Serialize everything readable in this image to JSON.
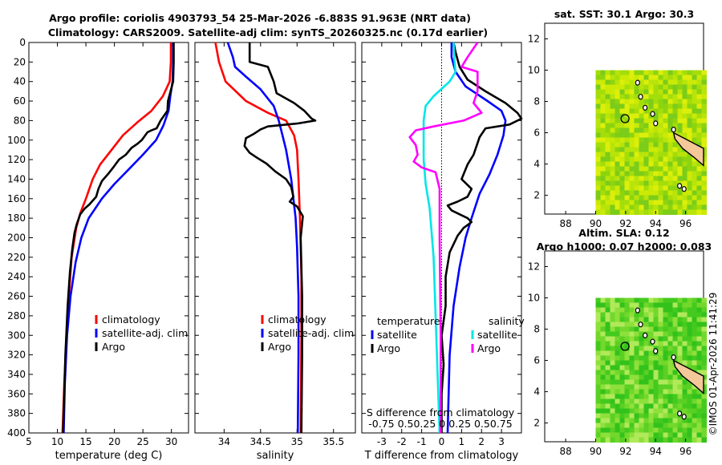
{
  "title_line1": "Argo profile: coriolis 4903793_54 25-Mar-2026 -6.883S 91.963E (NRT data)",
  "title_line2": "Climatology: CARS2009. Satellite-adj clim: synTS_20260325.nc (0.17d earlier)",
  "watermark": "©IMOS 01-Apr-2026 11:41:29",
  "chart_data": [
    {
      "type": "line",
      "id": "temp",
      "xlabel": "temperature (deg C)",
      "ylabel": "",
      "xlim": [
        5,
        33
      ],
      "ylim": [
        0,
        400
      ],
      "y_inverted": true,
      "xticks": [
        5,
        10,
        15,
        20,
        25,
        30
      ],
      "yticks": [
        0,
        20,
        40,
        60,
        80,
        100,
        120,
        140,
        160,
        180,
        200,
        220,
        240,
        260,
        280,
        300,
        320,
        340,
        360,
        380,
        400
      ],
      "legend": [
        "climatology",
        "satellite-adj. clim",
        "Argo"
      ],
      "series": [
        {
          "name": "climatology",
          "color": "#ff0000",
          "points": [
            [
              29.9,
              0
            ],
            [
              29.9,
              20
            ],
            [
              29.7,
              40
            ],
            [
              28.5,
              55
            ],
            [
              26.5,
              70
            ],
            [
              24.0,
              82
            ],
            [
              21.5,
              95
            ],
            [
              19.5,
              110
            ],
            [
              17.5,
              125
            ],
            [
              16.2,
              140
            ],
            [
              15.0,
              160
            ],
            [
              14.0,
              175
            ],
            [
              13.3,
              190
            ],
            [
              12.5,
              220
            ],
            [
              12.0,
              260
            ],
            [
              11.6,
              300
            ],
            [
              11.2,
              350
            ],
            [
              10.9,
              400
            ]
          ]
        },
        {
          "name": "satellite-adj. clim",
          "color": "#0000ff",
          "points": [
            [
              30.3,
              0
            ],
            [
              30.3,
              20
            ],
            [
              30.2,
              40
            ],
            [
              29.8,
              55
            ],
            [
              29.5,
              70
            ],
            [
              28.6,
              85
            ],
            [
              27.3,
              100
            ],
            [
              25.0,
              115
            ],
            [
              22.5,
              130
            ],
            [
              20.0,
              145
            ],
            [
              17.8,
              160
            ],
            [
              15.5,
              180
            ],
            [
              14.2,
              200
            ],
            [
              13.2,
              225
            ],
            [
              12.3,
              260
            ],
            [
              11.7,
              300
            ],
            [
              11.3,
              350
            ],
            [
              11.1,
              400
            ]
          ]
        },
        {
          "name": "Argo",
          "color": "#000000",
          "points": [
            [
              30.4,
              0
            ],
            [
              30.4,
              20
            ],
            [
              30.3,
              40
            ],
            [
              29.4,
              60
            ],
            [
              29.3,
              70
            ],
            [
              28.1,
              80
            ],
            [
              27.4,
              88
            ],
            [
              26.5,
              90
            ],
            [
              25.8,
              92
            ],
            [
              24.8,
              100
            ],
            [
              24.0,
              104
            ],
            [
              23.0,
              108
            ],
            [
              22.0,
              115
            ],
            [
              20.8,
              120
            ],
            [
              19.8,
              128
            ],
            [
              19.0,
              134
            ],
            [
              17.8,
              142
            ],
            [
              17.2,
              150
            ],
            [
              16.8,
              158
            ],
            [
              16.2,
              162
            ],
            [
              15.6,
              166
            ],
            [
              14.8,
              170
            ],
            [
              14.0,
              176
            ],
            [
              13.4,
              186
            ],
            [
              13.0,
              195
            ],
            [
              12.6,
              212
            ],
            [
              12.2,
              235
            ],
            [
              11.8,
              270
            ],
            [
              11.4,
              320
            ],
            [
              11.2,
              360
            ],
            [
              11.0,
              400
            ]
          ]
        }
      ]
    },
    {
      "type": "line",
      "id": "sal",
      "xlabel": "salinity",
      "xlim": [
        33.6,
        35.8
      ],
      "ylim": [
        0,
        400
      ],
      "y_inverted": true,
      "xticks": [
        34,
        34.5,
        35,
        35.5
      ],
      "legend": [
        "climatology",
        "satellite-adj. clim",
        "Argo"
      ],
      "series": [
        {
          "name": "climatology",
          "color": "#ff0000",
          "points": [
            [
              33.88,
              0
            ],
            [
              33.93,
              20
            ],
            [
              34.02,
              40
            ],
            [
              34.3,
              60
            ],
            [
              34.6,
              72
            ],
            [
              34.85,
              80
            ],
            [
              34.96,
              95
            ],
            [
              35.0,
              110
            ],
            [
              35.02,
              140
            ],
            [
              35.04,
              180
            ],
            [
              35.06,
              240
            ],
            [
              35.06,
              300
            ],
            [
              35.05,
              400
            ]
          ]
        },
        {
          "name": "satellite-adj. clim",
          "color": "#0000ff",
          "points": [
            [
              34.05,
              0
            ],
            [
              34.12,
              15
            ],
            [
              34.15,
              25
            ],
            [
              34.3,
              35
            ],
            [
              34.5,
              48
            ],
            [
              34.68,
              65
            ],
            [
              34.75,
              80
            ],
            [
              34.8,
              95
            ],
            [
              34.85,
              110
            ],
            [
              34.92,
              140
            ],
            [
              34.98,
              180
            ],
            [
              35.0,
              210
            ],
            [
              35.02,
              260
            ],
            [
              35.02,
              320
            ],
            [
              35.01,
              400
            ]
          ]
        },
        {
          "name": "Argo",
          "color": "#000000",
          "points": [
            [
              34.35,
              0
            ],
            [
              34.35,
              10
            ],
            [
              34.35,
              20
            ],
            [
              34.6,
              25
            ],
            [
              34.68,
              40
            ],
            [
              34.72,
              52
            ],
            [
              34.96,
              62
            ],
            [
              35.1,
              70
            ],
            [
              35.2,
              78
            ],
            [
              35.25,
              80
            ],
            [
              35.0,
              83
            ],
            [
              34.6,
              86
            ],
            [
              34.5,
              89
            ],
            [
              34.4,
              94
            ],
            [
              34.3,
              98
            ],
            [
              34.28,
              106
            ],
            [
              34.35,
              113
            ],
            [
              34.45,
              118
            ],
            [
              34.58,
              124
            ],
            [
              34.7,
              132
            ],
            [
              34.85,
              140
            ],
            [
              34.92,
              148
            ],
            [
              34.95,
              158
            ],
            [
              34.9,
              163
            ],
            [
              35.0,
              168
            ],
            [
              35.08,
              178
            ],
            [
              35.05,
              200
            ],
            [
              35.07,
              260
            ],
            [
              35.07,
              320
            ],
            [
              35.06,
              400
            ]
          ]
        }
      ]
    },
    {
      "type": "line",
      "id": "diff",
      "xlabel": "T difference from climatology",
      "top_label": "S difference from climatology",
      "top_ticks": "-0.75 0.50.25  0  0.25 0.50.75",
      "xlim": [
        -4,
        4
      ],
      "ylim": [
        0,
        400
      ],
      "y_inverted": true,
      "xticks": [
        -3,
        -2,
        -1,
        0,
        1,
        2,
        3
      ],
      "legend_left_title": "temperature",
      "legend_right_title": "salinity",
      "legend_left": [
        "satellite",
        "Argo"
      ],
      "legend_right": [
        "satellite",
        "Argo"
      ],
      "series": [
        {
          "name": "temperature satellite",
          "color": "#0000ff",
          "points": [
            [
              0.5,
              0
            ],
            [
              0.5,
              15
            ],
            [
              0.7,
              30
            ],
            [
              1.2,
              45
            ],
            [
              2.3,
              60
            ],
            [
              3.0,
              70
            ],
            [
              3.2,
              80
            ],
            [
              3.1,
              95
            ],
            [
              2.8,
              115
            ],
            [
              2.4,
              135
            ],
            [
              1.9,
              155
            ],
            [
              1.5,
              180
            ],
            [
              1.2,
              200
            ],
            [
              0.9,
              230
            ],
            [
              0.6,
              270
            ],
            [
              0.4,
              320
            ],
            [
              0.3,
              400
            ]
          ]
        },
        {
          "name": "temperature Argo",
          "color": "#000000",
          "points": [
            [
              0.6,
              0
            ],
            [
              0.7,
              10
            ],
            [
              0.9,
              25
            ],
            [
              1.3,
              38
            ],
            [
              2.2,
              50
            ],
            [
              3.2,
              62
            ],
            [
              3.8,
              72
            ],
            [
              4.0,
              78
            ],
            [
              3.4,
              84
            ],
            [
              2.2,
              88
            ],
            [
              1.9,
              97
            ],
            [
              1.8,
              103
            ],
            [
              1.6,
              115
            ],
            [
              1.3,
              125
            ],
            [
              1.0,
              140
            ],
            [
              1.5,
              150
            ],
            [
              1.3,
              158
            ],
            [
              0.8,
              163
            ],
            [
              0.3,
              167
            ],
            [
              0.5,
              172
            ],
            [
              0.9,
              176
            ],
            [
              1.3,
              180
            ],
            [
              1.5,
              184
            ],
            [
              1.1,
              190
            ],
            [
              0.8,
              198
            ],
            [
              0.4,
              215
            ],
            [
              0.2,
              240
            ],
            [
              0.2,
              270
            ],
            [
              0.0,
              300
            ],
            [
              0.1,
              330
            ],
            [
              0.0,
              360
            ],
            [
              0.0,
              400
            ]
          ]
        },
        {
          "name": "salinity satellite",
          "color": "#00e6e6",
          "points": [
            [
              0.6,
              0
            ],
            [
              0.65,
              20
            ],
            [
              0.7,
              30
            ],
            [
              0.4,
              40
            ],
            [
              -0.4,
              55
            ],
            [
              -0.8,
              65
            ],
            [
              -0.9,
              80
            ],
            [
              -0.9,
              100
            ],
            [
              -0.9,
              120
            ],
            [
              -0.8,
              145
            ],
            [
              -0.6,
              170
            ],
            [
              -0.4,
              220
            ],
            [
              -0.3,
              280
            ],
            [
              -0.2,
              340
            ],
            [
              -0.1,
              400
            ]
          ]
        },
        {
          "name": "salinity Argo",
          "color": "#ff00ff",
          "points": [
            [
              1.8,
              0
            ],
            [
              1.3,
              15
            ],
            [
              1.0,
              25
            ],
            [
              1.8,
              30
            ],
            [
              1.8,
              40
            ],
            [
              1.8,
              50
            ],
            [
              1.6,
              62
            ],
            [
              2.0,
              72
            ],
            [
              1.1,
              80
            ],
            [
              -0.4,
              86
            ],
            [
              -1.3,
              90
            ],
            [
              -1.6,
              97
            ],
            [
              -1.3,
              105
            ],
            [
              -1.2,
              115
            ],
            [
              -1.4,
              122
            ],
            [
              -1.0,
              128
            ],
            [
              -0.3,
              133
            ],
            [
              -0.1,
              150
            ],
            [
              -0.1,
              200
            ],
            [
              -0.05,
              300
            ],
            [
              -0.05,
              400
            ]
          ]
        }
      ]
    },
    {
      "type": "heatmap",
      "id": "sst_map",
      "title": "sat. SST: 30.1 Argo: 30.3",
      "xlim": [
        86.6,
        97.2
      ],
      "ylim": [
        0.8,
        13
      ],
      "xticks": [
        88,
        90,
        92,
        94,
        96
      ],
      "yticks": [
        2,
        4,
        6,
        8,
        10,
        12
      ],
      "data_extent": {
        "lon": [
          90,
          97.2
        ],
        "lat": [
          0.8,
          10
        ]
      },
      "argo_marker": {
        "lon": 91.96,
        "lat": 6.9
      },
      "land_color": "#f5c89a"
    },
    {
      "type": "heatmap",
      "id": "sla_map",
      "title": "Altim. SLA: 0.12",
      "subtitle": "Argo h1000: 0.07 h2000: 0.083",
      "xlim": [
        86.6,
        97.2
      ],
      "ylim": [
        0.8,
        13
      ],
      "xticks": [
        88,
        90,
        92,
        94,
        96
      ],
      "yticks": [
        2,
        4,
        6,
        8,
        10,
        12
      ],
      "data_extent": {
        "lon": [
          90,
          97.2
        ],
        "lat": [
          0.8,
          10
        ]
      },
      "argo_marker": {
        "lon": 91.96,
        "lat": 6.9
      },
      "land_color": "#f5c89a"
    }
  ]
}
